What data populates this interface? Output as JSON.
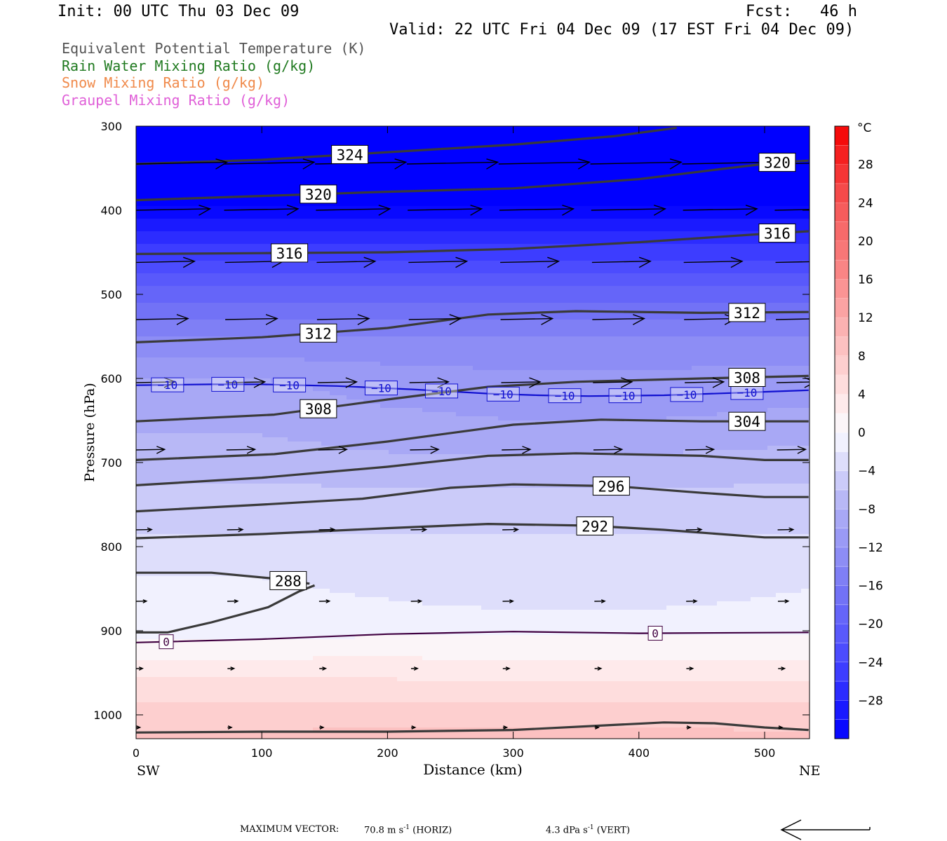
{
  "header": {
    "init": "Init: 00 UTC Thu 03 Dec 09",
    "fcst": "Fcst:   46 h",
    "valid": "Valid: 22 UTC Fri 04 Dec 09 (17 EST Fri 04 Dec 09)"
  },
  "legend": [
    {
      "label": "Equivalent Potential Temperature (K)",
      "color": "#555555"
    },
    {
      "label": "Rain Water Mixing Ratio (g/kg)",
      "color": "#207a20"
    },
    {
      "label": "Snow Mixing Ratio (g/kg)",
      "color": "#f08a4b"
    },
    {
      "label": "Graupel Mixing Ratio (g/kg)",
      "color": "#e060d8"
    }
  ],
  "footer": {
    "max_vector_label": "MAXIMUM VECTOR:",
    "horiz_value": "70.8 m s",
    "horiz_exp": "-1",
    "horiz_tag": "(HORIZ)",
    "vert_value": "4.3 dPa s",
    "vert_exp": "-1",
    "vert_tag": "(VERT)"
  },
  "chart_data": {
    "type": "cross-section",
    "xlabel": "Distance (km)",
    "ylabel": "Pressure (hPa)",
    "x_ticks": [
      0,
      100,
      200,
      300,
      400,
      500
    ],
    "x_tick_labels": [
      "0",
      "100",
      "200",
      "300",
      "400",
      "500"
    ],
    "x_range": [
      0,
      535
    ],
    "x_end_labels": {
      "left": "SW",
      "right": "NE"
    },
    "y_ticks": [
      300,
      400,
      500,
      600,
      700,
      800,
      900,
      1000
    ],
    "y_tick_labels": [
      "300",
      "400",
      "500",
      "600",
      "700",
      "800",
      "900",
      "1000"
    ],
    "y_range": [
      300,
      1030
    ],
    "colorbar": {
      "unit": "°C",
      "levels": [
        -32,
        -30,
        -28,
        -26,
        -24,
        -22,
        -20,
        -18,
        -16,
        -14,
        -12,
        -10,
        -8,
        -6,
        -4,
        -2,
        0,
        2,
        4,
        6,
        8,
        10,
        12,
        14,
        16,
        18,
        20,
        22,
        24,
        26,
        28,
        30,
        32
      ],
      "tick_values": [
        28,
        24,
        20,
        16,
        12,
        8,
        4,
        0,
        -4,
        -8,
        -12,
        -16,
        -20,
        -24,
        -28
      ],
      "tick_labels": [
        "28",
        "24",
        "20",
        "16",
        "12",
        "8",
        "4",
        "0",
        "−4",
        "−8",
        "−12",
        "−16",
        "−20",
        "−24",
        "−28"
      ]
    },
    "temperature_field": {
      "distance_km": [
        0,
        100,
        200,
        300,
        400,
        535
      ],
      "levels_hpa": [
        300,
        350,
        400,
        450,
        500,
        550,
        600,
        650,
        700,
        750,
        800,
        850,
        900,
        950,
        1000,
        1030
      ],
      "temperature_c": [
        [
          -44,
          -44,
          -44,
          -44,
          -44,
          -44
        ],
        [
          -38,
          -38,
          -38,
          -38,
          -38,
          -38
        ],
        [
          -31,
          -31,
          -31,
          -31,
          -31,
          -31
        ],
        [
          -25,
          -25,
          -25,
          -25,
          -25,
          -25
        ],
        [
          -19,
          -19,
          -19,
          -19,
          -19,
          -19
        ],
        [
          -14,
          -14,
          -14,
          -14,
          -14,
          -14
        ],
        [
          -10,
          -10,
          -11,
          -11.5,
          -11.5,
          -11
        ],
        [
          -8.5,
          -8.5,
          -9.5,
          -10,
          -10,
          -9.5
        ],
        [
          -7,
          -7,
          -7.5,
          -7.5,
          -7.5,
          -7
        ],
        [
          -5,
          -5,
          -5,
          -5,
          -5,
          -5
        ],
        [
          -3.5,
          -3.5,
          -3.5,
          -3.5,
          -3.5,
          -3.5
        ],
        [
          -1.5,
          -1.5,
          -2.5,
          -3.5,
          -3.5,
          -2
        ],
        [
          -1,
          -1,
          -0.5,
          -0.5,
          -0.5,
          -0.5
        ],
        [
          3.5,
          3.5,
          3.5,
          3,
          3,
          3
        ],
        [
          7,
          7,
          7,
          7,
          7,
          7
        ],
        [
          8.5,
          8.5,
          9,
          9,
          9,
          8.5
        ]
      ]
    },
    "temperature_contours": [
      {
        "value": -10,
        "label": "−10",
        "color": "#1010d0",
        "points": [
          [
            0,
            608
          ],
          [
            60,
            607
          ],
          [
            100,
            607
          ],
          [
            160,
            609
          ],
          [
            220,
            613
          ],
          [
            280,
            618
          ],
          [
            320,
            620
          ],
          [
            360,
            621
          ],
          [
            420,
            620
          ],
          [
            480,
            617
          ],
          [
            535,
            614
          ]
        ],
        "label_positions": [
          25,
          73,
          122,
          195,
          243,
          292,
          341,
          389,
          438,
          486
        ]
      },
      {
        "value": 0,
        "label": "0",
        "color": "#400040",
        "points": [
          [
            0,
            914
          ],
          [
            100,
            910
          ],
          [
            200,
            904
          ],
          [
            300,
            901
          ],
          [
            400,
            903
          ],
          [
            535,
            902
          ]
        ],
        "label_positions": [
          24,
          413
        ]
      }
    ],
    "theta_e_contours": [
      {
        "value": 324,
        "label": "324",
        "points": [
          [
            0,
            345
          ],
          [
            100,
            340
          ],
          [
            200,
            331
          ],
          [
            300,
            322
          ],
          [
            380,
            312
          ],
          [
            430,
            302
          ]
        ],
        "label_positions": [
          170
        ]
      },
      {
        "value": 320,
        "label": "320",
        "points": [
          [
            0,
            388
          ],
          [
            100,
            383
          ],
          [
            200,
            378
          ],
          [
            300,
            374
          ],
          [
            400,
            363
          ],
          [
            460,
            352
          ],
          [
            510,
            343
          ],
          [
            535,
            341
          ]
        ],
        "label_positions": [
          145,
          510
        ]
      },
      {
        "value": 316,
        "label": "316",
        "points": [
          [
            0,
            452
          ],
          [
            100,
            451
          ],
          [
            200,
            450
          ],
          [
            300,
            446
          ],
          [
            400,
            438
          ],
          [
            500,
            428
          ],
          [
            535,
            425
          ]
        ],
        "label_positions": [
          122,
          510
        ]
      },
      {
        "value": 312,
        "label": "312",
        "points": [
          [
            0,
            557
          ],
          [
            100,
            551
          ],
          [
            200,
            540
          ],
          [
            280,
            524
          ],
          [
            350,
            520
          ],
          [
            450,
            522
          ],
          [
            535,
            521
          ]
        ],
        "label_positions": [
          145,
          486
        ]
      },
      {
        "value": 308,
        "label": "308",
        "points": [
          [
            0,
            651
          ],
          [
            110,
            643
          ],
          [
            200,
            625
          ],
          [
            280,
            610
          ],
          [
            350,
            604
          ],
          [
            450,
            600
          ],
          [
            535,
            597
          ]
        ],
        "label_positions": [
          145,
          486
        ]
      },
      {
        "value": 304,
        "label": "304",
        "points": [
          [
            0,
            697
          ],
          [
            110,
            690
          ],
          [
            200,
            675
          ],
          [
            300,
            655
          ],
          [
            370,
            649
          ],
          [
            450,
            651
          ],
          [
            535,
            651
          ]
        ],
        "label_positions": [
          486
        ]
      },
      {
        "value": 300,
        "label": "",
        "points": [
          [
            0,
            727
          ],
          [
            100,
            718
          ],
          [
            200,
            705
          ],
          [
            280,
            692
          ],
          [
            350,
            689
          ],
          [
            450,
            692
          ],
          [
            500,
            697
          ],
          [
            535,
            697
          ]
        ],
        "label_positions": []
      },
      {
        "value": 296,
        "label": "296",
        "points": [
          [
            0,
            758
          ],
          [
            100,
            750
          ],
          [
            180,
            743
          ],
          [
            250,
            730
          ],
          [
            300,
            726
          ],
          [
            380,
            728
          ],
          [
            450,
            736
          ],
          [
            500,
            741
          ],
          [
            535,
            741
          ]
        ],
        "label_positions": [
          378
        ]
      },
      {
        "value": 292,
        "label": "292",
        "points": [
          [
            0,
            790
          ],
          [
            100,
            785
          ],
          [
            200,
            778
          ],
          [
            280,
            773
          ],
          [
            360,
            775
          ],
          [
            420,
            780
          ],
          [
            500,
            789
          ],
          [
            535,
            789
          ]
        ],
        "label_positions": [
          365
        ]
      },
      {
        "value": 288,
        "label": "288",
        "points": [
          [
            0,
            831
          ],
          [
            60,
            831
          ],
          [
            110,
            838
          ],
          [
            138,
            844
          ]
        ],
        "label_positions": [
          121
        ]
      },
      {
        "value": 288,
        "label": "",
        "points": [
          [
            0,
            902
          ],
          [
            25,
            902
          ],
          [
            60,
            890
          ],
          [
            105,
            872
          ],
          [
            130,
            853
          ],
          [
            142,
            846
          ]
        ],
        "label_positions": []
      },
      {
        "value": 280,
        "label": "",
        "points": [
          [
            0,
            1021
          ],
          [
            100,
            1020
          ],
          [
            200,
            1020
          ],
          [
            300,
            1018
          ],
          [
            380,
            1012
          ],
          [
            420,
            1009
          ],
          [
            460,
            1010
          ],
          [
            500,
            1015
          ],
          [
            535,
            1018
          ]
        ],
        "label_positions": []
      }
    ],
    "wind_vectors": {
      "distance_km": [
        0,
        73,
        146,
        219,
        292,
        365,
        438,
        511
      ],
      "levels_hpa": [
        345,
        400,
        462,
        530,
        605,
        685,
        780,
        865,
        945,
        1015
      ],
      "u_ms": [
        [
          70,
          70,
          70,
          70,
          70,
          70,
          70,
          70
        ],
        [
          57,
          57,
          57,
          57,
          57,
          57,
          57,
          57
        ],
        [
          45,
          45,
          45,
          45,
          45,
          45,
          45,
          45
        ],
        [
          40,
          40,
          40,
          40,
          40,
          40,
          40,
          40
        ],
        [
          30,
          30,
          30,
          30,
          30,
          30,
          30,
          30
        ],
        [
          22,
          22,
          22,
          22,
          22,
          22,
          22,
          22
        ],
        [
          12,
          12,
          12,
          12,
          12,
          12,
          12,
          12
        ],
        [
          8,
          8,
          8,
          8,
          8,
          8,
          8,
          8
        ],
        [
          5,
          5,
          5,
          5,
          5,
          5,
          5,
          5
        ],
        [
          3,
          3,
          3,
          3,
          3,
          3,
          3,
          3
        ]
      ]
    }
  }
}
